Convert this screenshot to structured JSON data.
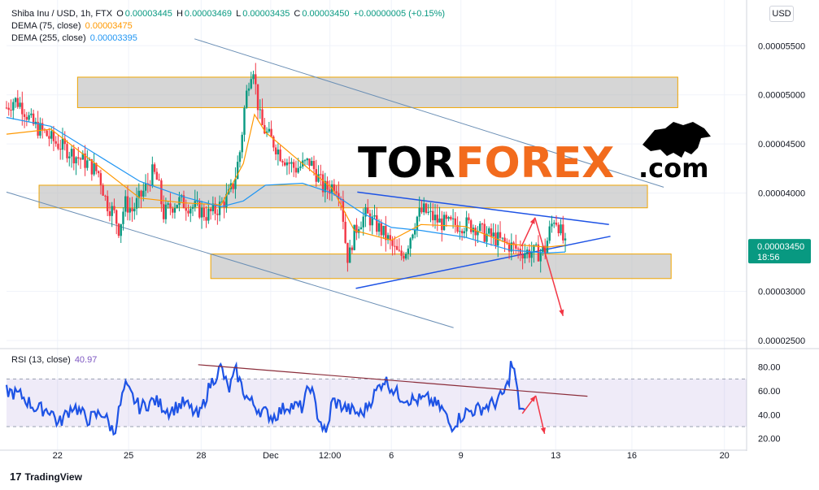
{
  "legend": {
    "symbol": "Shiba Inu / USD, 1h, FTX",
    "o_key": "O",
    "o_val": "0.00003445",
    "h_key": "H",
    "h_val": "0.00003469",
    "l_key": "L",
    "l_val": "0.00003435",
    "c_key": "C",
    "c_val": "0.00003450",
    "change": "+0.00000005 (+0.15%)",
    "dema75_label": "DEMA (75, close)",
    "dema75_val": "0.00003475",
    "dema255_label": "DEMA (255, close)",
    "dema255_val": "0.00003395",
    "rsi_label": "RSI (13, close)",
    "rsi_val": "40.97"
  },
  "currency": "USD",
  "logo": {
    "text": "TradingView",
    "icon": "tradingview-logo-icon"
  },
  "watermark": {
    "part1": "TOR",
    "part2": "FOREX",
    "part3": ".com",
    "icon": "bull-icon"
  },
  "colors": {
    "accent_orange": "#f26b1d",
    "up": "#089981",
    "down": "#f23645",
    "rsi": "#1e53e5",
    "dema75": "#ff9800",
    "dema255": "#2196f3"
  },
  "chart_data": [
    {
      "type": "candlestick",
      "title": "Shiba Inu / USD, 1h, FTX",
      "x_ticks": [
        "22",
        "25",
        "28",
        "Dec",
        "12:00",
        "6",
        "9",
        "13",
        "16",
        "20"
      ],
      "y_ticks": [
        "0.00005500",
        "0.00005000",
        "0.00004500",
        "0.00004000",
        "0.00003000",
        "0.00002500"
      ],
      "ylim": [
        2.45e-05,
        5.8e-05
      ],
      "current_price": "0.00003450",
      "countdown": "18:56",
      "grid": true,
      "price_path": [
        [
          0.0,
          4.87e-05
        ],
        [
          0.01,
          4.95e-05
        ],
        [
          0.02,
          4.9e-05
        ],
        [
          0.035,
          4.7e-05
        ],
        [
          0.05,
          4.62e-05
        ],
        [
          0.065,
          4.52e-05
        ],
        [
          0.08,
          4.45e-05
        ],
        [
          0.095,
          4.37e-05
        ],
        [
          0.11,
          4.3e-05
        ],
        [
          0.125,
          4.2e-05
        ],
        [
          0.135,
          3.9e-05
        ],
        [
          0.145,
          3.8e-05
        ],
        [
          0.152,
          3.63e-05
        ],
        [
          0.16,
          3.9e-05
        ],
        [
          0.17,
          3.82e-05
        ],
        [
          0.18,
          3.95e-05
        ],
        [
          0.19,
          4.08e-05
        ],
        [
          0.198,
          4.22e-05
        ],
        [
          0.205,
          4.1e-05
        ],
        [
          0.212,
          3.78e-05
        ],
        [
          0.22,
          3.85e-05
        ],
        [
          0.232,
          3.92e-05
        ],
        [
          0.245,
          3.88e-05
        ],
        [
          0.258,
          3.84e-05
        ],
        [
          0.27,
          3.78e-05
        ],
        [
          0.282,
          3.82e-05
        ],
        [
          0.292,
          3.9e-05
        ],
        [
          0.3,
          3.97e-05
        ],
        [
          0.308,
          4.12e-05
        ],
        [
          0.316,
          4.45e-05
        ],
        [
          0.322,
          4.9e-05
        ],
        [
          0.328,
          5.18e-05
        ],
        [
          0.333,
          5.32e-05
        ],
        [
          0.338,
          4.98e-05
        ],
        [
          0.344,
          4.7e-05
        ],
        [
          0.352,
          4.6e-05
        ],
        [
          0.36,
          4.52e-05
        ],
        [
          0.37,
          4.4e-05
        ],
        [
          0.38,
          4.32e-05
        ],
        [
          0.39,
          4.25e-05
        ],
        [
          0.4,
          4.28e-05
        ],
        [
          0.41,
          4.32e-05
        ],
        [
          0.42,
          4.18e-05
        ],
        [
          0.428,
          4.05e-05
        ],
        [
          0.436,
          4.05e-05
        ],
        [
          0.444,
          4.1e-05
        ],
        [
          0.452,
          3.98e-05
        ],
        [
          0.458,
          3.5e-05
        ],
        [
          0.462,
          3.3e-05
        ],
        [
          0.468,
          3.55e-05
        ],
        [
          0.476,
          3.7e-05
        ],
        [
          0.486,
          3.78e-05
        ],
        [
          0.496,
          3.7e-05
        ],
        [
          0.506,
          3.62e-05
        ],
        [
          0.516,
          3.52e-05
        ],
        [
          0.524,
          3.42e-05
        ],
        [
          0.532,
          3.35e-05
        ],
        [
          0.54,
          3.43e-05
        ],
        [
          0.548,
          3.62e-05
        ],
        [
          0.556,
          3.78e-05
        ],
        [
          0.564,
          3.82e-05
        ],
        [
          0.574,
          3.76e-05
        ],
        [
          0.586,
          3.7e-05
        ],
        [
          0.598,
          3.68e-05
        ],
        [
          0.61,
          3.68e-05
        ],
        [
          0.622,
          3.68e-05
        ],
        [
          0.634,
          3.66e-05
        ],
        [
          0.646,
          3.58e-05
        ],
        [
          0.658,
          3.55e-05
        ],
        [
          0.67,
          3.5e-05
        ],
        [
          0.682,
          3.46e-05
        ],
        [
          0.694,
          3.41e-05
        ],
        [
          0.706,
          3.4e-05
        ],
        [
          0.718,
          3.39e-05
        ],
        [
          0.728,
          3.43e-05
        ],
        [
          0.734,
          3.62e-05
        ],
        [
          0.74,
          3.75e-05
        ],
        [
          0.745,
          3.7e-05
        ],
        [
          0.75,
          3.57e-05
        ],
        [
          0.755,
          3.45e-05
        ]
      ],
      "dema75": [
        [
          0.0,
          4.6e-05
        ],
        [
          0.06,
          4.65e-05
        ],
        [
          0.12,
          4.3e-05
        ],
        [
          0.18,
          3.95e-05
        ],
        [
          0.24,
          3.9e-05
        ],
        [
          0.29,
          3.88e-05
        ],
        [
          0.32,
          4.3e-05
        ],
        [
          0.335,
          4.8e-05
        ],
        [
          0.35,
          4.62e-05
        ],
        [
          0.4,
          4.3e-05
        ],
        [
          0.44,
          4.05e-05
        ],
        [
          0.47,
          3.62e-05
        ],
        [
          0.52,
          3.52e-05
        ],
        [
          0.56,
          3.68e-05
        ],
        [
          0.62,
          3.66e-05
        ],
        [
          0.68,
          3.48e-05
        ],
        [
          0.73,
          3.45e-05
        ],
        [
          0.755,
          3.47e-05
        ]
      ],
      "dema255": [
        [
          0.0,
          4.77e-05
        ],
        [
          0.06,
          4.68e-05
        ],
        [
          0.12,
          4.4e-05
        ],
        [
          0.18,
          4.12e-05
        ],
        [
          0.24,
          3.96e-05
        ],
        [
          0.29,
          3.86e-05
        ],
        [
          0.32,
          3.92e-05
        ],
        [
          0.35,
          4.08e-05
        ],
        [
          0.4,
          4.1e-05
        ],
        [
          0.44,
          4e-05
        ],
        [
          0.48,
          3.8e-05
        ],
        [
          0.52,
          3.65e-05
        ],
        [
          0.56,
          3.62e-05
        ],
        [
          0.62,
          3.55e-05
        ],
        [
          0.68,
          3.42e-05
        ],
        [
          0.73,
          3.39e-05
        ],
        [
          0.755,
          3.4e-05
        ]
      ],
      "zones": [
        {
          "x0": 0.096,
          "x1": 0.907,
          "y0": 4.87e-05,
          "y1": 5.18e-05
        },
        {
          "x0": 0.044,
          "x1": 0.866,
          "y0": 3.85e-05,
          "y1": 4.08e-05
        },
        {
          "x0": 0.276,
          "x1": 0.898,
          "y0": 3.13e-05,
          "y1": 3.38e-05
        }
      ],
      "trend_lines": [
        {
          "color": "#6b8fb5",
          "p0": [
            0.254,
            5.57e-05
          ],
          "p1": [
            0.888,
            4.06e-05
          ]
        },
        {
          "color": "#6b8fb5",
          "p0": [
            0.0,
            4.01e-05
          ],
          "p1": [
            0.604,
            2.63e-05
          ]
        },
        {
          "color": "#1e53e5",
          "p0": [
            0.474,
            4.01e-05
          ],
          "p1": [
            0.814,
            3.68e-05
          ]
        },
        {
          "color": "#1e53e5",
          "p0": [
            0.472,
            3.03e-05
          ],
          "p1": [
            0.816,
            3.56e-05
          ]
        }
      ],
      "arrows": [
        {
          "p0": [
            0.696,
            3.46e-05
          ],
          "p1": [
            0.714,
            3.75e-05
          ]
        },
        {
          "p0": [
            0.714,
            3.75e-05
          ],
          "p1": [
            0.752,
            2.75e-05
          ]
        }
      ]
    },
    {
      "type": "line",
      "title": "RSI (13, close)",
      "y_ticks": [
        "80.00",
        "60.00",
        "40.00",
        "20.00"
      ],
      "ylim": [
        15,
        88
      ],
      "bands": [
        30,
        70
      ],
      "last_value": 40.97,
      "values": [
        [
          0.0,
          60
        ],
        [
          0.02,
          56
        ],
        [
          0.04,
          45
        ],
        [
          0.06,
          44
        ],
        [
          0.07,
          32
        ],
        [
          0.09,
          48
        ],
        [
          0.11,
          36
        ],
        [
          0.13,
          42
        ],
        [
          0.145,
          25
        ],
        [
          0.16,
          64
        ],
        [
          0.18,
          46
        ],
        [
          0.2,
          52
        ],
        [
          0.22,
          43
        ],
        [
          0.24,
          50
        ],
        [
          0.26,
          38
        ],
        [
          0.275,
          65
        ],
        [
          0.29,
          80
        ],
        [
          0.3,
          60
        ],
        [
          0.31,
          77
        ],
        [
          0.318,
          63
        ],
        [
          0.325,
          54
        ],
        [
          0.34,
          45
        ],
        [
          0.36,
          38
        ],
        [
          0.38,
          48
        ],
        [
          0.4,
          46
        ],
        [
          0.41,
          66
        ],
        [
          0.42,
          41
        ],
        [
          0.432,
          22
        ],
        [
          0.44,
          52
        ],
        [
          0.46,
          45
        ],
        [
          0.48,
          40
        ],
        [
          0.5,
          60
        ],
        [
          0.51,
          70
        ],
        [
          0.53,
          56
        ],
        [
          0.55,
          52
        ],
        [
          0.57,
          53
        ],
        [
          0.59,
          44
        ],
        [
          0.6,
          30
        ],
        [
          0.62,
          42
        ],
        [
          0.64,
          45
        ],
        [
          0.66,
          50
        ],
        [
          0.67,
          56
        ],
        [
          0.678,
          66
        ],
        [
          0.682,
          85
        ],
        [
          0.688,
          70
        ],
        [
          0.692,
          49
        ],
        [
          0.7,
          41
        ]
      ],
      "trend_lines": [
        {
          "color": "#8b2d3a",
          "p0": [
            0.259,
            82.0
          ],
          "p1": [
            0.785,
            55.5
          ]
        }
      ],
      "arrows": [
        {
          "p0": [
            0.697,
            41
          ],
          "p1": [
            0.715,
            56
          ]
        },
        {
          "p0": [
            0.715,
            56
          ],
          "p1": [
            0.727,
            24
          ]
        }
      ]
    }
  ]
}
